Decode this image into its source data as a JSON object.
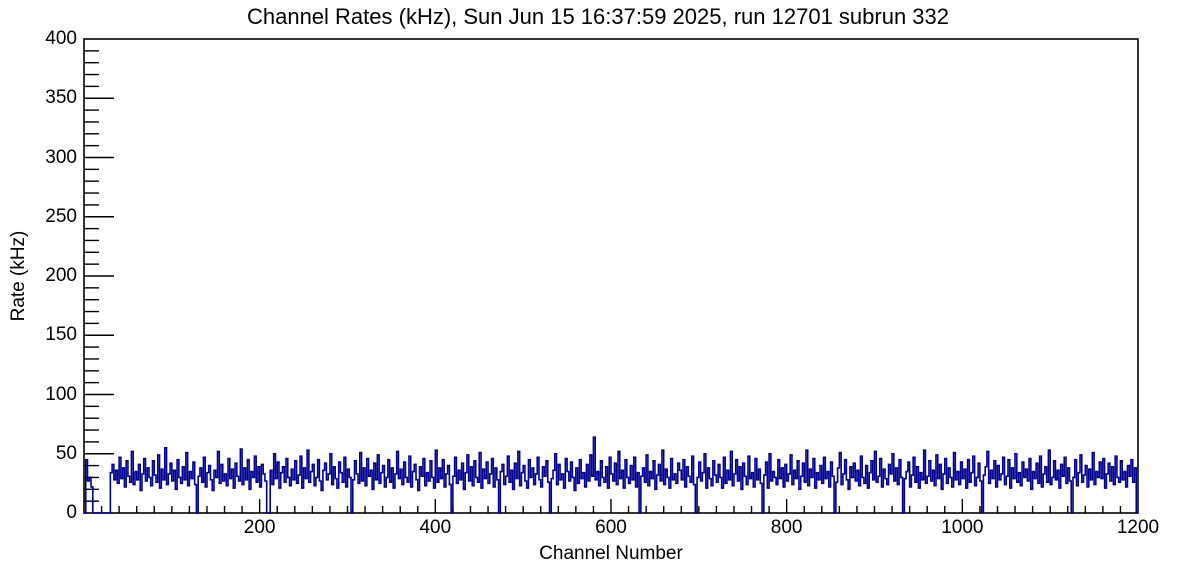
{
  "chart_data": {
    "type": "line",
    "style": "histogram-step",
    "title": "Channel Rates (kHz), Sun Jun 15 16:37:59 2025, run 12701 subrun 332",
    "xlabel": "Channel Number",
    "ylabel": "Rate (kHz)",
    "xlim": [
      0,
      1200
    ],
    "ylim": [
      0,
      400
    ],
    "x_ticks_major": [
      200,
      400,
      600,
      800,
      1000,
      1200
    ],
    "x_minor_step": 20,
    "y_ticks_major": [
      0,
      50,
      100,
      150,
      200,
      250,
      300,
      350,
      400
    ],
    "y_minor_step": 10,
    "grid": false,
    "legend": "none",
    "line_color": "#00008F",
    "frame_color": "#000000",
    "background_color": "#FFFFFF",
    "x_start": 0,
    "x_step": 2,
    "values": [
      0,
      45,
      27,
      30,
      22,
      0,
      0,
      0,
      0,
      0,
      0,
      0,
      0,
      0,
      0,
      34,
      41,
      28,
      36,
      25,
      47,
      29,
      38,
      22,
      44,
      31,
      26,
      52,
      24,
      35,
      28,
      41,
      19,
      33,
      46,
      27,
      38,
      30,
      23,
      44,
      32,
      26,
      49,
      21,
      37,
      28,
      55,
      24,
      33,
      42,
      27,
      36,
      20,
      45,
      30,
      25,
      39,
      28,
      51,
      23,
      35,
      29,
      43,
      24,
      0,
      31,
      38,
      26,
      47,
      22,
      34,
      40,
      28,
      19,
      36,
      30,
      52,
      25,
      41,
      27,
      33,
      23,
      46,
      29,
      37,
      21,
      42,
      31,
      27,
      54,
      24,
      38,
      28,
      45,
      20,
      35,
      30,
      48,
      26,
      39,
      22,
      41,
      33,
      27,
      0,
      0,
      36,
      24,
      50,
      29,
      43,
      21,
      34,
      39,
      26,
      46,
      30,
      23,
      37,
      28,
      44,
      25,
      32,
      48,
      21,
      38,
      29,
      53,
      26,
      35,
      41,
      23,
      30,
      45,
      27,
      19,
      36,
      42,
      28,
      33,
      50,
      24,
      39,
      29,
      21,
      43,
      34,
      26,
      47,
      22,
      37,
      30,
      0,
      28,
      44,
      33,
      25,
      51,
      27,
      38,
      23,
      46,
      31,
      36,
      20,
      42,
      28,
      49,
      25,
      34,
      40,
      22,
      30,
      45,
      26,
      38,
      21,
      33,
      52,
      29,
      37,
      24,
      43,
      30,
      26,
      48,
      22,
      35,
      41,
      28,
      19,
      39,
      31,
      46,
      23,
      34,
      27,
      44,
      30,
      21,
      53,
      26,
      38,
      29,
      45,
      22,
      33,
      40,
      24,
      0,
      31,
      47,
      25,
      36,
      28,
      42,
      20,
      34,
      49,
      27,
      39,
      23,
      44,
      30,
      26,
      51,
      21,
      37,
      29,
      43,
      25,
      33,
      46,
      22,
      38,
      28,
      0,
      35,
      41,
      24,
      31,
      48,
      26,
      36,
      20,
      42,
      29,
      52,
      23,
      34,
      40,
      27,
      21,
      45,
      30,
      38,
      24,
      33,
      47,
      28,
      22,
      39,
      31,
      44,
      26,
      0,
      29,
      36,
      50,
      24,
      41,
      28,
      33,
      21,
      46,
      35,
      27,
      43,
      30,
      19,
      38,
      25,
      45,
      29,
      34,
      22,
      41,
      27,
      49,
      31,
      64,
      28,
      35,
      23,
      44,
      30,
      26,
      39,
      21,
      47,
      33,
      27,
      42,
      24,
      52,
      29,
      36,
      21,
      45,
      30,
      25,
      40,
      28,
      47,
      22,
      34,
      0,
      31,
      38,
      26,
      49,
      23,
      35,
      29,
      44,
      20,
      32,
      41,
      27,
      53,
      24,
      37,
      30,
      21,
      46,
      28,
      33,
      25,
      42,
      36,
      28,
      45,
      22,
      39,
      31,
      26,
      48,
      24,
      0,
      30,
      43,
      27,
      34,
      50,
      21,
      38,
      29,
      23,
      44,
      32,
      26,
      41,
      30,
      21,
      47,
      25,
      36,
      28,
      52,
      23,
      33,
      45,
      27,
      39,
      20,
      42,
      31,
      24,
      48,
      29,
      34,
      22,
      46,
      28,
      37,
      25,
      0,
      32,
      43,
      21,
      50,
      27,
      35,
      30,
      24,
      45,
      29,
      38,
      22,
      41,
      27,
      33,
      49,
      24,
      36,
      29,
      44,
      20,
      31,
      42,
      26,
      53,
      23,
      37,
      30,
      46,
      21,
      34,
      28,
      40,
      25,
      47,
      29,
      35,
      22,
      43,
      31,
      0,
      26,
      38,
      51,
      24,
      33,
      45,
      28,
      20,
      39,
      30,
      42,
      27,
      36,
      23,
      48,
      30,
      25,
      40,
      21,
      34,
      44,
      28,
      52,
      26,
      31,
      46,
      22,
      37,
      29,
      24,
      41,
      33,
      50,
      27,
      38,
      24,
      45,
      30,
      0,
      29,
      35,
      43,
      22,
      32,
      47,
      26,
      39,
      21,
      34,
      28,
      53,
      25,
      31,
      44,
      27,
      36,
      23,
      49,
      29,
      41,
      20,
      33,
      46,
      25,
      38,
      30,
      22,
      51,
      28,
      35,
      24,
      43,
      29,
      37,
      21,
      45,
      26,
      34,
      48,
      23,
      30,
      42,
      27,
      0,
      32,
      39,
      52,
      25,
      36,
      29,
      44,
      22,
      40,
      28,
      33,
      47,
      24,
      31,
      45,
      21,
      38,
      29,
      50,
      26,
      34,
      23,
      43,
      30,
      37,
      27,
      46,
      20,
      35,
      29,
      42,
      25,
      48,
      22,
      33,
      39,
      26,
      53,
      24,
      30,
      44,
      28,
      36,
      21,
      41,
      31,
      47,
      25,
      38,
      27,
      0,
      30,
      45,
      23,
      34,
      49,
      26,
      32,
      40,
      22,
      37,
      28,
      51,
      24,
      35,
      30,
      43,
      29,
      46,
      21,
      33,
      42,
      27,
      39,
      24,
      48,
      30,
      26,
      44,
      28,
      35,
      22,
      40,
      31,
      45,
      26,
      38,
      0
    ]
  }
}
